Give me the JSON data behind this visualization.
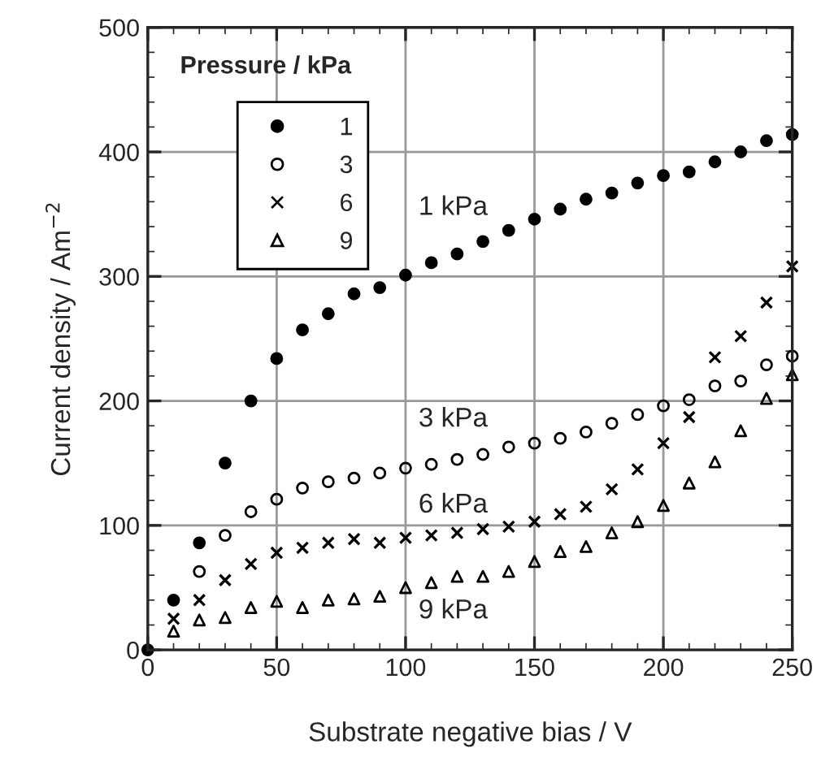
{
  "chart_data": {
    "type": "scatter",
    "xlabel": "Substrate negative bias / V",
    "ylabel": "Current density / Am$^{−2}$",
    "legend_title": "Pressure / kPa",
    "legend": "top left",
    "grid": true,
    "xlim": [
      0,
      250
    ],
    "xticks": [
      0,
      50,
      100,
      150,
      200,
      250
    ],
    "ylim": [
      0,
      500
    ],
    "yticks": [
      0,
      100,
      200,
      300,
      400,
      500
    ],
    "x": [
      0,
      10,
      20,
      30,
      40,
      50,
      60,
      70,
      80,
      90,
      100,
      110,
      120,
      130,
      140,
      150,
      160,
      170,
      180,
      190,
      200,
      210,
      220,
      230,
      240,
      250
    ],
    "series": [
      {
        "name": "1",
        "color": "#000000",
        "marker": "circle",
        "values": [
          0,
          40,
          86,
          150,
          200,
          234,
          257,
          270,
          286,
          291,
          301,
          311,
          318,
          328,
          337,
          346,
          354,
          362,
          367,
          375,
          381,
          384,
          392,
          400,
          409,
          414
        ]
      },
      {
        "name": "3",
        "color": "#000000",
        "marker": "circle",
        "values": [
          null,
          null,
          63,
          92,
          111,
          121,
          130,
          135,
          138,
          142,
          146,
          149,
          153,
          157,
          163,
          166,
          170,
          175,
          182,
          189,
          196,
          201,
          212,
          216,
          229,
          236
        ]
      },
      {
        "name": "6",
        "color": "#000000",
        "marker": "cross",
        "values": [
          null,
          25,
          40,
          56,
          69,
          78,
          82,
          86,
          89,
          86,
          90,
          92,
          94,
          97,
          99,
          103,
          109,
          115,
          129,
          145,
          166,
          187,
          235,
          252,
          279,
          308
        ]
      },
      {
        "name": "9",
        "color": "#000000",
        "marker": "triangle",
        "values": [
          null,
          15,
          24,
          26,
          34,
          39,
          34,
          40,
          41,
          43,
          50,
          54,
          59,
          59,
          63,
          71,
          79,
          83,
          94,
          103,
          116,
          134,
          151,
          176,
          202,
          221
        ]
      }
    ],
    "annotations": [
      "1 kPa",
      "3 kPa",
      "6 kPa",
      "9 kPa"
    ]
  }
}
